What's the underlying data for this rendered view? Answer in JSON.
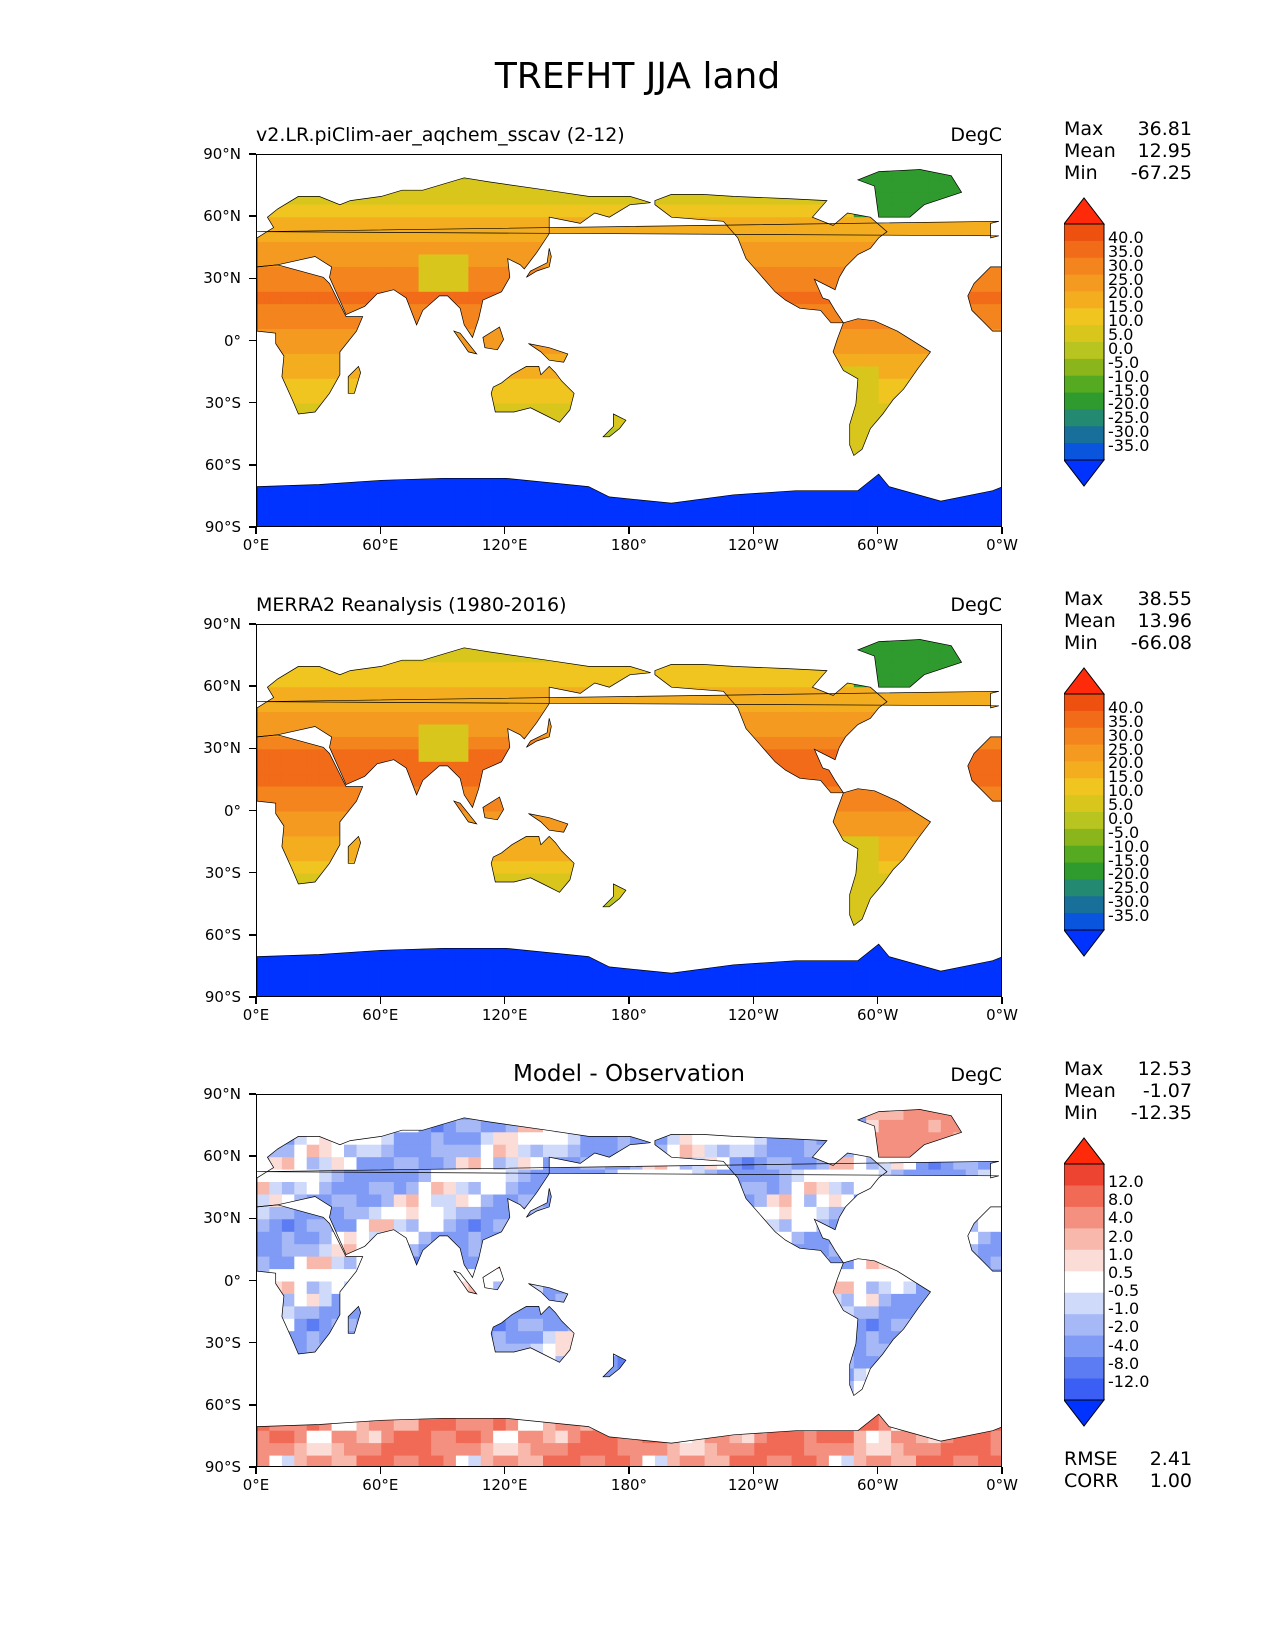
{
  "figure_title": "TREFHT JJA land",
  "colors": {
    "temp_scale": [
      "#0033ff",
      "#0a55dd",
      "#176f9a",
      "#238970",
      "#2f9a2e",
      "#55aa22",
      "#8ab61c",
      "#b8c420",
      "#d8c61c",
      "#f0c520",
      "#f5ad20",
      "#f59a20",
      "#f4851e",
      "#f26b18",
      "#ee5010",
      "#ff2a0a"
    ],
    "diff_scale": [
      "#0033ff",
      "#3b5ef5",
      "#5b7cf3",
      "#7f9bf5",
      "#a6b8f5",
      "#cfd9fa",
      "#ffffff",
      "#fcdcd6",
      "#f8b8ab",
      "#f49080",
      "#f06a55",
      "#ec4430",
      "#ff2a0a"
    ],
    "antarctic_blue": "#0033ff",
    "diff_warm": "#f06a55",
    "diff_cool": "#8aa3f5"
  },
  "chart_data": [
    {
      "type": "heatmap",
      "panel": "model",
      "title": "v2.LR.piClim-aer_aqchem_sscav (2-12)",
      "units": "DegC",
      "stats": {
        "max_label": "Max",
        "max": "36.81",
        "mean_label": "Mean",
        "mean": "12.95",
        "min_label": "Min",
        "min": "-67.25"
      },
      "yticks": [
        "90°N",
        "60°N",
        "30°N",
        "0°",
        "30°S",
        "60°S",
        "90°S"
      ],
      "xticks": [
        "0°E",
        "60°E",
        "120°E",
        "180°",
        "120°W",
        "60°W",
        "0°W"
      ],
      "colorbar_levels": [
        "40.0",
        "35.0",
        "30.0",
        "25.0",
        "20.0",
        "15.0",
        "10.0",
        "5.0",
        "0.0",
        "-5.0",
        "-10.0",
        "-15.0",
        "-20.0",
        "-25.0",
        "-30.0",
        "-35.0"
      ],
      "colorbar_scale": "temp"
    },
    {
      "type": "heatmap",
      "panel": "obs",
      "title": "MERRA2 Reanalysis (1980-2016)",
      "units": "DegC",
      "stats": {
        "max_label": "Max",
        "max": "38.55",
        "mean_label": "Mean",
        "mean": "13.96",
        "min_label": "Min",
        "min": "-66.08"
      },
      "yticks": [
        "90°N",
        "60°N",
        "30°N",
        "0°",
        "30°S",
        "60°S",
        "90°S"
      ],
      "xticks": [
        "0°E",
        "60°E",
        "120°E",
        "180°",
        "120°W",
        "60°W",
        "0°W"
      ],
      "colorbar_levels": [
        "40.0",
        "35.0",
        "30.0",
        "25.0",
        "20.0",
        "15.0",
        "10.0",
        "5.0",
        "0.0",
        "-5.0",
        "-10.0",
        "-15.0",
        "-20.0",
        "-25.0",
        "-30.0",
        "-35.0"
      ],
      "colorbar_scale": "temp"
    },
    {
      "type": "heatmap",
      "panel": "diff",
      "title": "Model - Observation",
      "units": "DegC",
      "stats": {
        "max_label": "Max",
        "max": "12.53",
        "mean_label": "Mean",
        "mean": "-1.07",
        "min_label": "Min",
        "min": "-12.35"
      },
      "extra_stats": {
        "rmse_label": "RMSE",
        "rmse": "2.41",
        "corr_label": "CORR",
        "corr": "1.00"
      },
      "yticks": [
        "90°N",
        "60°N",
        "30°N",
        "0°",
        "30°S",
        "60°S",
        "90°S"
      ],
      "xticks": [
        "0°E",
        "60°E",
        "120°E",
        "180°",
        "120°W",
        "60°W",
        "0°W"
      ],
      "colorbar_levels": [
        "12.0",
        "8.0",
        "4.0",
        "2.0",
        "1.0",
        "0.5",
        "-0.5",
        "-1.0",
        "-2.0",
        "-4.0",
        "-8.0",
        "-12.0"
      ],
      "colorbar_scale": "diff"
    }
  ]
}
